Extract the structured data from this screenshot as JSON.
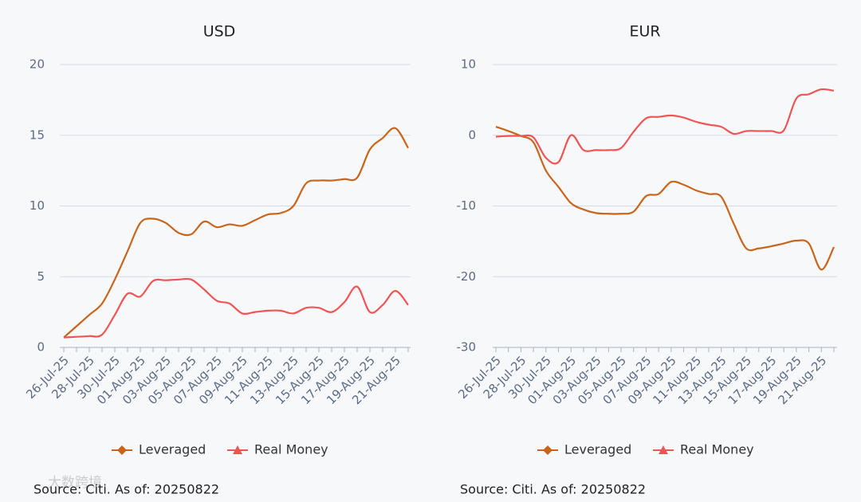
{
  "chart_data": [
    {
      "type": "line",
      "title": "USD",
      "categories": [
        "26-Jul-25",
        null,
        "28-Jul-25",
        null,
        "30-Jul-25",
        null,
        "01-Aug-25",
        null,
        "03-Aug-25",
        null,
        "05-Aug-25",
        null,
        "07-Aug-25",
        null,
        "09-Aug-25",
        null,
        "11-Aug-25",
        null,
        "13-Aug-25",
        null,
        "15-Aug-25",
        null,
        "17-Aug-25",
        null,
        "19-Aug-25",
        null,
        "21-Aug-25",
        null
      ],
      "series": [
        {
          "name": "Leveraged",
          "color": "#c8651b",
          "marker": "diamond",
          "values": [
            0.7,
            1.5,
            2.3,
            3.1,
            4.8,
            6.8,
            8.8,
            9.1,
            8.8,
            8.1,
            8.0,
            8.9,
            8.5,
            8.7,
            8.6,
            9.0,
            9.4,
            9.5,
            10.0,
            11.6,
            11.8,
            11.8,
            11.9,
            12.0,
            14.0,
            14.8,
            15.5,
            14.1
          ]
        },
        {
          "name": "Real Money",
          "color": "#f05454",
          "marker": "triangle",
          "values": [
            0.7,
            0.75,
            0.8,
            0.9,
            2.3,
            3.8,
            3.6,
            4.7,
            4.75,
            4.8,
            4.8,
            4.1,
            3.3,
            3.1,
            2.4,
            2.5,
            2.6,
            2.6,
            2.4,
            2.8,
            2.8,
            2.5,
            3.2,
            4.3,
            2.5,
            3.0,
            4.0,
            3.0
          ]
        }
      ],
      "ylim": [
        0,
        20
      ],
      "yticks": [
        0,
        5,
        10,
        15,
        20
      ],
      "grid": true,
      "source": "Source: Citi. As of: 20250822"
    },
    {
      "type": "line",
      "title": "EUR",
      "categories": [
        "26-Jul-25",
        null,
        "28-Jul-25",
        null,
        "30-Jul-25",
        null,
        "01-Aug-25",
        null,
        "03-Aug-25",
        null,
        "05-Aug-25",
        null,
        "07-Aug-25",
        null,
        "09-Aug-25",
        null,
        "11-Aug-25",
        null,
        "13-Aug-25",
        null,
        "15-Aug-25",
        null,
        "17-Aug-25",
        null,
        "19-Aug-25",
        null,
        "21-Aug-25",
        null
      ],
      "series": [
        {
          "name": "Leveraged",
          "color": "#c8651b",
          "marker": "diamond",
          "values": [
            1.2,
            0.6,
            -0.1,
            -1.0,
            -5.0,
            -7.3,
            -9.6,
            -10.5,
            -11.0,
            -11.1,
            -11.1,
            -10.8,
            -8.6,
            -8.3,
            -6.6,
            -7.0,
            -7.8,
            -8.3,
            -8.7,
            -12.5,
            -16.0,
            -16.0,
            -15.7,
            -15.3,
            -14.9,
            -15.3,
            -19.0,
            -15.8
          ]
        },
        {
          "name": "Real Money",
          "color": "#f05454",
          "marker": "triangle",
          "values": [
            -0.2,
            -0.1,
            -0.1,
            -0.3,
            -3.2,
            -3.8,
            0.0,
            -2.1,
            -2.1,
            -2.1,
            -1.8,
            0.5,
            2.4,
            2.6,
            2.8,
            2.5,
            1.9,
            1.5,
            1.2,
            0.2,
            0.6,
            0.6,
            0.6,
            0.7,
            5.2,
            5.8,
            6.5,
            6.3
          ]
        }
      ],
      "ylim": [
        -30,
        10
      ],
      "yticks": [
        -30,
        -20,
        -10,
        0,
        10
      ],
      "grid": true,
      "source": "Source: Citi. As of: 20250822"
    }
  ],
  "watermark": "大数跨境"
}
